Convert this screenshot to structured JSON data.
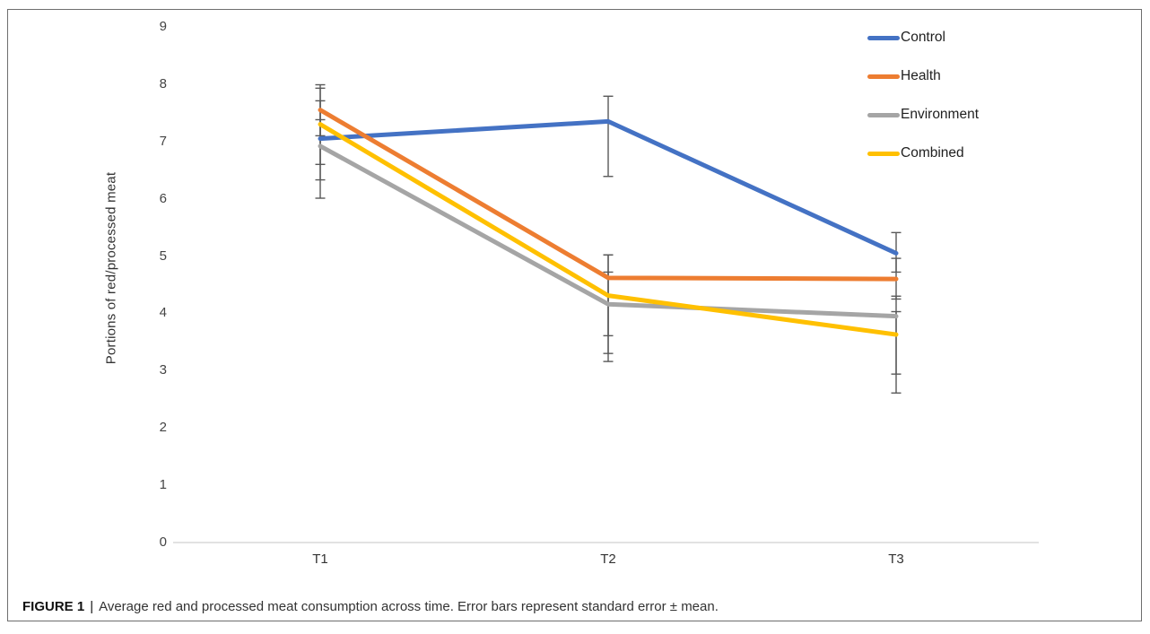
{
  "figure": {
    "caption_label": "FIGURE 1",
    "caption_separator": "|",
    "caption_text": "Average red and processed meat consumption across time. Error bars represent standard error ± mean."
  },
  "chart_data": {
    "type": "line",
    "title": "",
    "xlabel": "",
    "ylabel": "Portions of red/processed meat",
    "x_labels": [
      "T1",
      "T2",
      "T3"
    ],
    "ylim": [
      0,
      9
    ],
    "y_ticks": [
      0,
      1,
      2,
      3,
      4,
      5,
      6,
      7,
      8,
      9
    ],
    "grid": false,
    "legend_position": "top-right",
    "error_bar_note": "standard error ± mean",
    "series": [
      {
        "name": "Control",
        "color": "#4472C4",
        "values": [
          7.05,
          7.35,
          5.05
        ],
        "error_low": [
          6.6,
          6.39,
          4.72
        ],
        "error_high": [
          7.38,
          7.79,
          5.41
        ]
      },
      {
        "name": "Health",
        "color": "#ED7D31",
        "values": [
          7.55,
          4.62,
          4.6
        ],
        "error_low": [
          7.1,
          3.61,
          4.25
        ],
        "error_high": [
          7.99,
          5.02,
          4.96
        ]
      },
      {
        "name": "Environment",
        "color": "#A5A5A5",
        "values": [
          6.92,
          4.16,
          3.95
        ],
        "error_low": [
          6.01,
          3.3,
          2.61
        ],
        "error_high": [
          7.93,
          4.72,
          4.03
        ]
      },
      {
        "name": "Combined",
        "color": "#FFC000",
        "values": [
          7.3,
          4.31,
          3.63
        ],
        "error_low": [
          6.33,
          3.16,
          2.94
        ],
        "error_high": [
          7.71,
          5.02,
          4.3
        ]
      }
    ]
  }
}
